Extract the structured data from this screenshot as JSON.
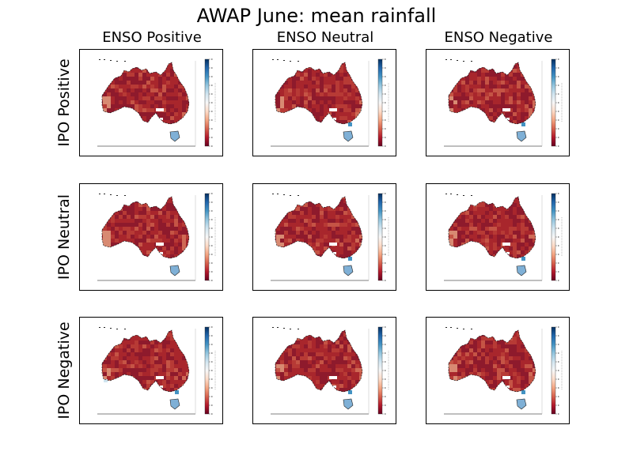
{
  "title": "AWAP June: mean rainfall",
  "columns": [
    "ENSO Positive",
    "ENSO Neutral",
    "ENSO Negative"
  ],
  "rows": [
    "IPO Positive",
    "IPO Neutral",
    "IPO Negative"
  ],
  "colormap": {
    "name": "RdBu",
    "stops": [
      "#67001f",
      "#b2182b",
      "#d6604d",
      "#f4a582",
      "#fddbc7",
      "#f7f7f7",
      "#d1e5f0",
      "#92c5de",
      "#4393c3",
      "#2166ac",
      "#053061"
    ]
  },
  "map": {
    "region": "Australia",
    "ocean_color": "#ffffff",
    "land_base_color": "#a2232b"
  },
  "panels": [
    {
      "row": "IPO Positive",
      "column": "ENSO Positive"
    },
    {
      "row": "IPO Positive",
      "column": "ENSO Neutral"
    },
    {
      "row": "IPO Positive",
      "column": "ENSO Negative"
    },
    {
      "row": "IPO Neutral",
      "column": "ENSO Positive"
    },
    {
      "row": "IPO Neutral",
      "column": "ENSO Neutral"
    },
    {
      "row": "IPO Neutral",
      "column": "ENSO Negative"
    },
    {
      "row": "IPO Negative",
      "column": "ENSO Positive"
    },
    {
      "row": "IPO Negative",
      "column": "ENSO Neutral"
    },
    {
      "row": "IPO Negative",
      "column": "ENSO Negative"
    }
  ]
}
